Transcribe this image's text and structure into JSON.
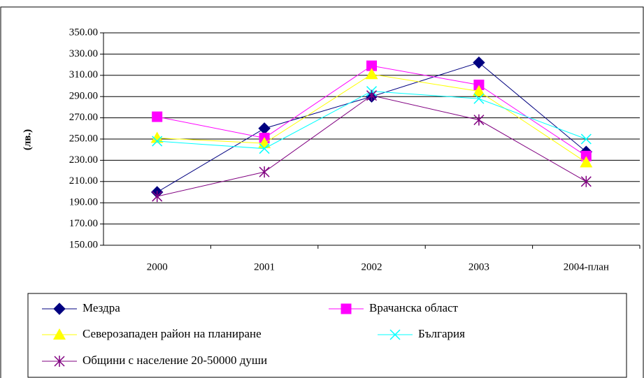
{
  "chart_data": {
    "type": "line",
    "y_label": "(лв.)",
    "categories": [
      "2000",
      "2001",
      "2002",
      "2003",
      "2004-план"
    ],
    "ylim": [
      150,
      350
    ],
    "yticks": [
      {
        "value": 150,
        "label": "150.00"
      },
      {
        "value": 170,
        "label": "170.00"
      },
      {
        "value": 190,
        "label": "190.00"
      },
      {
        "value": 210,
        "label": "210.00"
      },
      {
        "value": 230,
        "label": "230.00"
      },
      {
        "value": 250,
        "label": "250.00"
      },
      {
        "value": 270,
        "label": "270.00"
      },
      {
        "value": 290,
        "label": "290.00"
      },
      {
        "value": 310,
        "label": "310.00"
      },
      {
        "value": 330,
        "label": "330.00"
      },
      {
        "value": 350,
        "label": "350.00"
      }
    ],
    "grid": true,
    "legend": "bottom",
    "series": [
      {
        "name": "Мездра",
        "color": "#000080",
        "marker": "diamond",
        "values": [
          200,
          260,
          290,
          322,
          238
        ]
      },
      {
        "name": "Врачанска област",
        "color": "#FF00FF",
        "marker": "square",
        "values": [
          271,
          251,
          319,
          301,
          234
        ]
      },
      {
        "name": "Северозападен район на планиране",
        "color": "#FFFF00",
        "marker": "triangle",
        "values": [
          251,
          246,
          311,
          295,
          228
        ]
      },
      {
        "name": "България",
        "color": "#00FFFF",
        "marker": "x",
        "values": [
          248,
          241,
          295,
          288,
          250
        ]
      },
      {
        "name": "Общини с население 20-50000 души",
        "color": "#800080",
        "marker": "star",
        "values": [
          196,
          219,
          291,
          268,
          210
        ]
      }
    ]
  }
}
